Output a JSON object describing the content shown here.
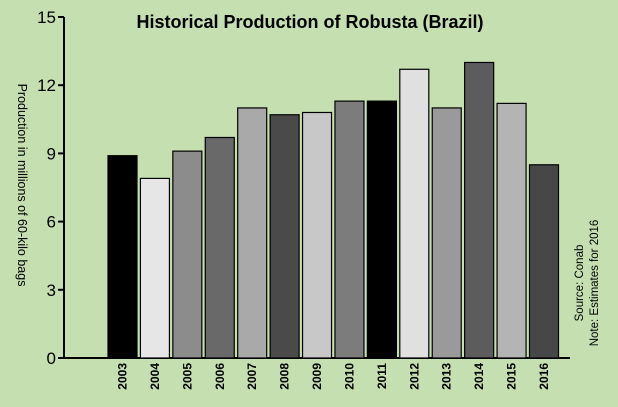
{
  "chart_data": {
    "type": "bar",
    "title": "Historical Production of Robusta (Brazil)",
    "xlabel": "",
    "ylabel": "Production in millions of 60-kilo bags",
    "ylim": [
      0,
      15
    ],
    "yticks": [
      0,
      3,
      6,
      9,
      12,
      15
    ],
    "grid": false,
    "categories": [
      "2003",
      "2004",
      "2005",
      "2006",
      "2007",
      "2008",
      "2009",
      "2010",
      "2011",
      "2012",
      "2013",
      "2014",
      "2015",
      "2016"
    ],
    "values": [
      8.9,
      7.9,
      9.1,
      9.7,
      11.0,
      10.7,
      10.8,
      11.3,
      11.3,
      12.7,
      11.0,
      13.0,
      11.2,
      8.5
    ],
    "bar_colors": [
      "#000000",
      "#e6e6e6",
      "#8c8c8c",
      "#696969",
      "#a9a9a9",
      "#4a4a4a",
      "#c8c8c8",
      "#7c7c7c",
      "#000000",
      "#e0e0e0",
      "#9a9a9a",
      "#5c5c5c",
      "#b4b4b4",
      "#474747"
    ],
    "notes": [
      "Source: Conab",
      "Note: Estimates for 2016"
    ]
  },
  "colors": {
    "background": "#c5dfb0",
    "axis": "#000000",
    "text": "#000000"
  }
}
